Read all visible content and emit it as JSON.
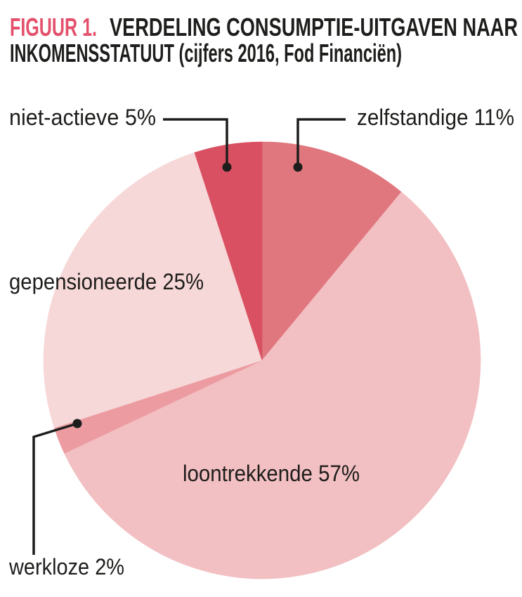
{
  "title": {
    "prefix": "FIGUUR 1.",
    "line1_rest": "VERDELING CONSUMPTIE-UITGAVEN NAAR",
    "line2": "INKOMENSSTATUUT (cijfers 2016, Fod Financiën)",
    "prefix_color": "#E4506B",
    "text_color": "#1D1D1B"
  },
  "chart_data": {
    "type": "pie",
    "title": "FIGUUR 1. VERDELING CONSUMPTIE-UITGAVEN NAAR INKOMENSSTATUUT (cijfers 2016, Fod Financiën)",
    "unit": "%",
    "start": "top",
    "direction": "clockwise",
    "legend_position": "labels-with-leader-lines",
    "slices": [
      {
        "label": "zelfstandige",
        "value_pct": 11,
        "color": "#E0767E",
        "display": "zelfstandige 11%"
      },
      {
        "label": "loontrekkende",
        "value_pct": 57,
        "color": "#F2BFC2",
        "display": "loontrekkende 57%"
      },
      {
        "label": "werkloze",
        "value_pct": 2,
        "color": "#EC9BA1",
        "display": "werkloze 2%"
      },
      {
        "label": "gepensioneerde",
        "value_pct": 25,
        "color": "#F7D8D8",
        "display": "gepensioneerde 25%"
      },
      {
        "label": "niet-actieve",
        "value_pct": 5,
        "color": "#D95062",
        "display": "niet-actieve 5%"
      }
    ],
    "leader_line_color": "#1D1D1B"
  }
}
